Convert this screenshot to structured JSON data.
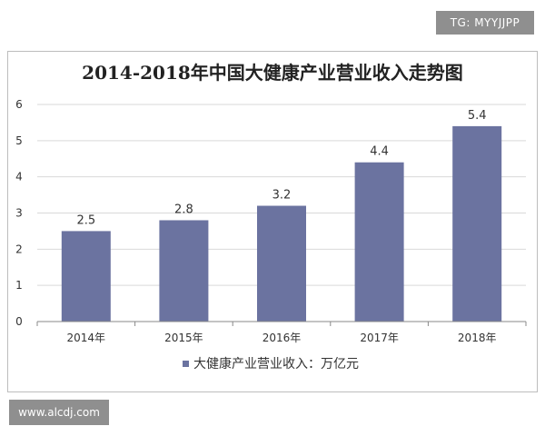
{
  "watermarks": {
    "top": "TG: MYYJJPP",
    "bottom": "www.alcdj.com"
  },
  "chart_data": {
    "type": "bar",
    "title": "2014-2018年中国大健康产业营业收入走势图",
    "categories": [
      "2014年",
      "2015年",
      "2016年",
      "2017年",
      "2018年"
    ],
    "series": [
      {
        "name": "大健康产业营业收入：万亿元",
        "values": [
          2.5,
          2.8,
          3.2,
          4.4,
          5.4
        ]
      }
    ],
    "data_labels": [
      "2.5",
      "2.8",
      "3.2",
      "4.4",
      "5.4"
    ],
    "ylim": [
      0,
      6
    ],
    "yticks": [
      0,
      1,
      2,
      3,
      4,
      5,
      6
    ],
    "grid": true,
    "legend_position": "bottom",
    "colors": {
      "bar": "#6b73a0",
      "grid": "#d9d9d9",
      "axis": "#888888"
    }
  }
}
